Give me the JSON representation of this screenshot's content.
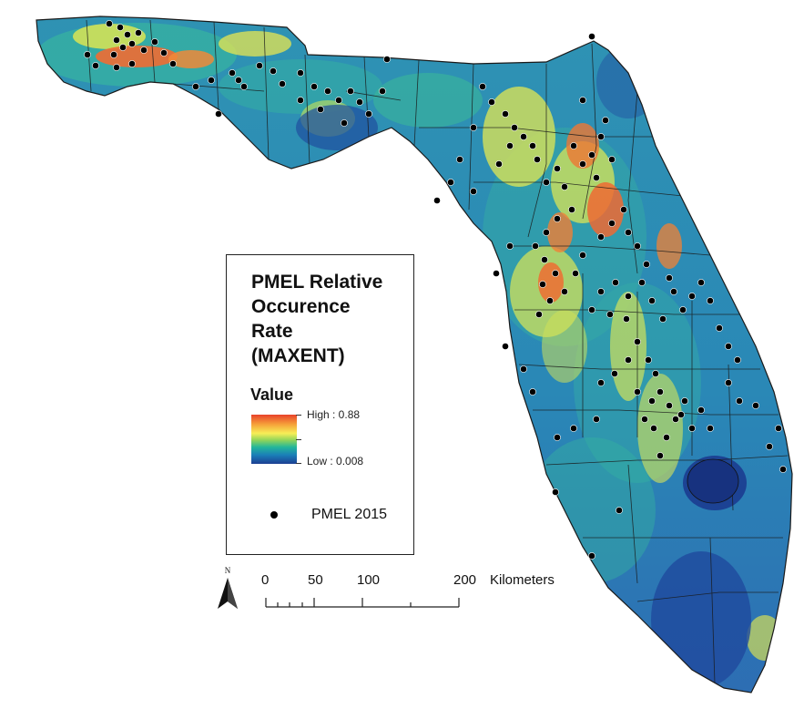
{
  "legend": {
    "title_line1": "PMEL Relative",
    "title_line2": "Occurence",
    "title_line3": "Rate",
    "title_line4": "(MAXENT)",
    "value_heading": "Value",
    "high_label": "High : 0.88",
    "low_label": "Low : 0.008",
    "points_label": "PMEL 2015",
    "ramp_colors": [
      "#e8412a",
      "#f6a33a",
      "#f7ee57",
      "#8fd45a",
      "#23b79a",
      "#1a7fb8",
      "#1c3f92"
    ],
    "high_value": 0.88,
    "low_value": 0.008
  },
  "north_arrow": {
    "label": "N",
    "icon": "north-arrow-icon"
  },
  "scale_bar": {
    "ticks": [
      "0",
      "50",
      "100",
      "200"
    ],
    "unit": "Kilometers"
  },
  "colors": {
    "low": "#1c3f92",
    "mid": "#23b79a",
    "high": "#e8412a",
    "boundary": "#1a1a1a",
    "points": "#000000"
  }
}
